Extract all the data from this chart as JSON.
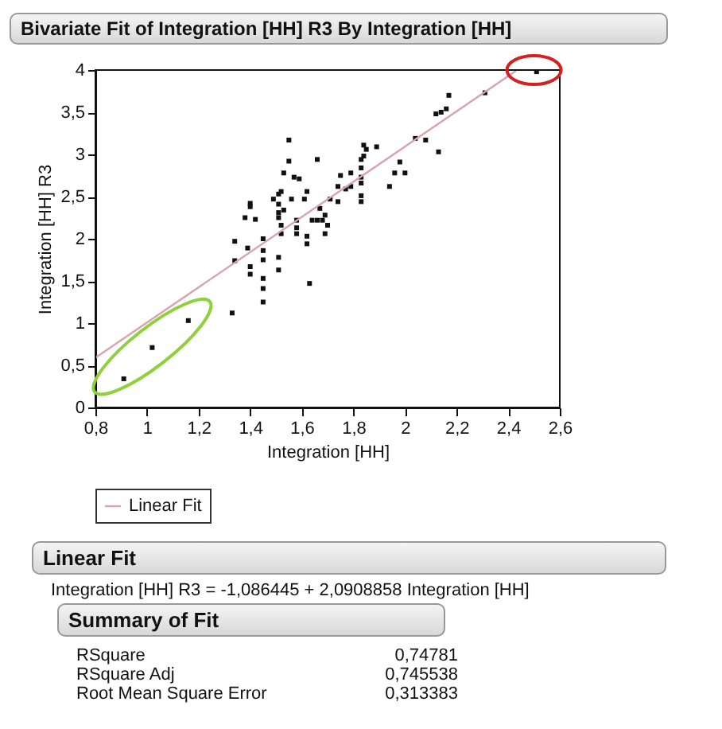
{
  "chart_data": {
    "type": "scatter",
    "title": "Bivariate Fit of Integration [HH] R3 By Integration [HH]",
    "xlabel": "Integration [HH]",
    "ylabel": "Integration [HH] R3",
    "xlim": [
      0.8,
      2.6
    ],
    "ylim": [
      0,
      4
    ],
    "xticks": [
      {
        "value": 0.8,
        "label": "0,8"
      },
      1,
      {
        "value": 1.2,
        "label": "1,2"
      },
      {
        "value": 1.4,
        "label": "1,4"
      },
      {
        "value": 1.6,
        "label": "1,6"
      },
      {
        "value": 1.8,
        "label": "1,8"
      },
      2,
      {
        "value": 2.2,
        "label": "2,2"
      },
      {
        "value": 2.4,
        "label": "2,4"
      },
      {
        "value": 2.6,
        "label": "2,6"
      }
    ],
    "yticks": [
      0,
      {
        "value": 0.5,
        "label": "0,5"
      },
      1,
      {
        "value": 1.5,
        "label": "1,5"
      },
      2,
      {
        "value": 2.5,
        "label": "2,5"
      },
      3,
      {
        "value": 3.5,
        "label": "3,5"
      },
      4
    ],
    "grid": false,
    "legend": "bottom left",
    "series": [
      {
        "type": "scatter",
        "marker": "square",
        "color": "#111111",
        "x": [
          0.91,
          1.02,
          1.16,
          1.33,
          1.34,
          1.34,
          1.39,
          1.38,
          1.4,
          1.4,
          1.4,
          1.4,
          1.42,
          1.45,
          1.45,
          1.45,
          1.45,
          1.45,
          1.45,
          1.49,
          1.51,
          1.52,
          1.51,
          1.51,
          1.51,
          1.52,
          1.52,
          1.51,
          1.51,
          1.53,
          1.55,
          1.55,
          1.53,
          1.57,
          1.59,
          1.56,
          1.58,
          1.58,
          1.58,
          1.62,
          1.62,
          1.63,
          1.61,
          1.62,
          1.66,
          1.64,
          1.66,
          1.68,
          1.69,
          1.7,
          1.69,
          1.67,
          1.71,
          1.74,
          1.74,
          1.75,
          1.77,
          1.79,
          1.79,
          1.83,
          1.84,
          1.84,
          1.85,
          1.89,
          1.83,
          1.83,
          1.83,
          1.83,
          1.83,
          1.94,
          1.96,
          1.98,
          2.0,
          2.04,
          2.08,
          2.13,
          2.12,
          2.14,
          2.16,
          2.17,
          2.31,
          2.51
        ],
        "values": [
          0.34,
          0.71,
          1.03,
          1.12,
          1.74,
          1.97,
          1.89,
          2.25,
          2.42,
          2.38,
          1.67,
          1.58,
          2.23,
          2.0,
          1.86,
          1.75,
          1.53,
          1.41,
          1.25,
          2.47,
          2.53,
          2.56,
          2.41,
          2.31,
          2.25,
          2.16,
          2.06,
          1.78,
          1.63,
          2.78,
          3.17,
          2.92,
          2.34,
          2.73,
          2.71,
          2.47,
          2.22,
          2.13,
          2.06,
          2.03,
          1.94,
          1.47,
          2.47,
          2.56,
          2.94,
          2.22,
          2.22,
          2.22,
          2.28,
          2.16,
          2.06,
          2.36,
          2.47,
          2.44,
          2.62,
          2.75,
          2.59,
          2.62,
          2.78,
          2.94,
          2.98,
          3.11,
          3.06,
          3.09,
          2.84,
          2.73,
          2.66,
          2.51,
          2.44,
          2.62,
          2.78,
          2.91,
          2.78,
          3.19,
          3.17,
          3.03,
          3.48,
          3.5,
          3.54,
          3.7,
          3.73,
          3.98
        ]
      },
      {
        "type": "line",
        "name": "Linear Fit",
        "color": "#d8a4ac",
        "x": [
          0.8,
          2.43
        ],
        "values": [
          0.59,
          3.99
        ]
      }
    ],
    "annotations": [
      "Linear Fit",
      "Integration [HH] R3 = -1,086445 + 2,0908858 Integration [HH]",
      "Summary of Fit",
      "RSquare",
      "0,74781",
      "RSquare Adj",
      "0,745538",
      "Root Mean Square Error",
      "0,313383"
    ]
  }
}
